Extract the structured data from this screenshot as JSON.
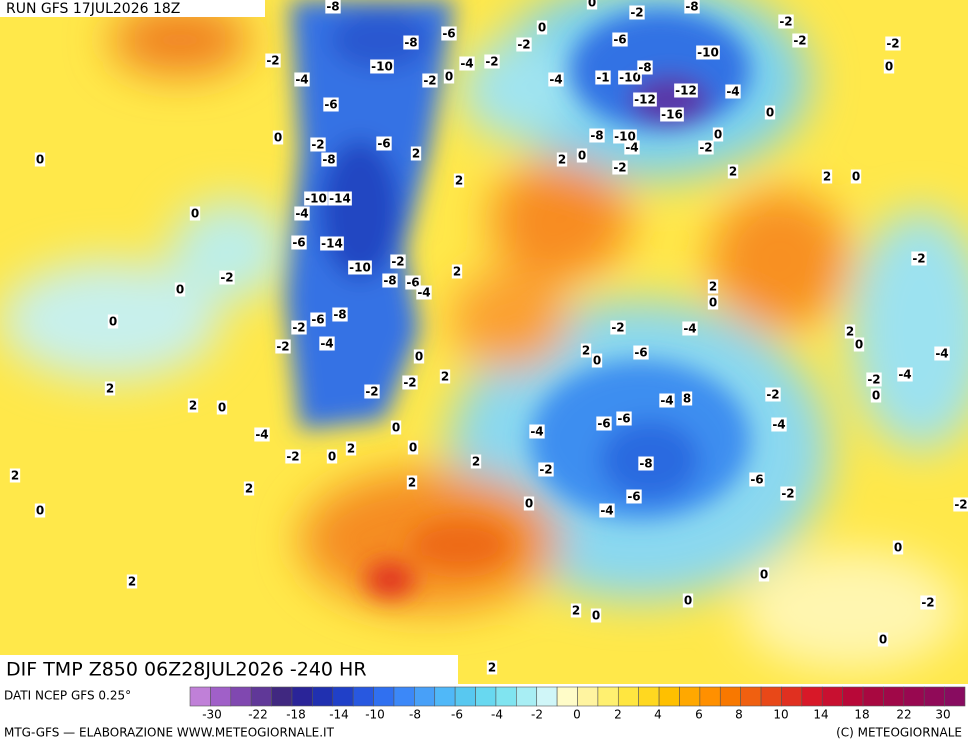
{
  "header": {
    "run": "RUN GFS 17JUL2026 18Z"
  },
  "map": {
    "title": "DIF TMP Z850 06Z28JUL2026 -240 HR",
    "contour_labels": [
      -8,
      0,
      -2,
      -8,
      -2,
      -2,
      -2,
      0,
      -6,
      -8,
      -10,
      -2,
      0,
      -6,
      -10,
      -2,
      -4,
      -2,
      0,
      -4,
      -2,
      -4,
      -1,
      -10,
      -8,
      -4,
      -12,
      -12,
      -16,
      0,
      -6,
      0,
      -2,
      -6,
      2,
      0,
      -8,
      -8,
      -10,
      -4,
      0,
      -2,
      2,
      0,
      -2,
      2,
      2,
      0,
      2,
      -10,
      -14,
      0,
      -4,
      -6,
      -14,
      -10,
      -2,
      -8,
      -6,
      -4,
      2,
      -2,
      0,
      -2,
      2,
      0,
      0,
      -2,
      -6,
      -8,
      -2,
      -4,
      -4,
      -2,
      2,
      0,
      -4,
      -6,
      2,
      0,
      0,
      -2,
      -4,
      -2,
      2,
      -2,
      2,
      2,
      0,
      -2,
      0,
      -4,
      8,
      -6,
      -6,
      -4,
      -4,
      -4,
      0,
      2,
      0,
      -2,
      0,
      2,
      -2,
      -8,
      2,
      -6,
      2,
      2,
      -2,
      -6,
      0,
      0,
      -4,
      -2,
      0,
      0,
      2,
      0,
      2,
      0,
      -2,
      0,
      2
    ]
  },
  "legend": {
    "source": "DATI NCEP GFS 0.25°",
    "colors": [
      "#c080d8",
      "#a060c8",
      "#8048b0",
      "#603898",
      "#402880",
      "#2a2498",
      "#2030b0",
      "#2040c8",
      "#2858e0",
      "#3070f0",
      "#3c88f8",
      "#48a0f8",
      "#50b8f8",
      "#58c8f0",
      "#68d8f0",
      "#80e4f0",
      "#a8eef4",
      "#d0f6f8",
      "#fffcc8",
      "#fff4a0",
      "#fff070",
      "#ffe640",
      "#ffd820",
      "#ffc000",
      "#ffa800",
      "#ff9000",
      "#f87800",
      "#f06010",
      "#e84818",
      "#e03020",
      "#d81828",
      "#c81030",
      "#b80838",
      "#a80840",
      "#a00848",
      "#980850",
      "#900a58",
      "#880c60"
    ],
    "labels": [
      -30,
      -22,
      -18,
      -14,
      -10,
      -8,
      -6,
      -4,
      -2,
      0,
      2,
      4,
      6,
      8,
      10,
      14,
      18,
      22,
      30
    ]
  },
  "footer": {
    "credit": "MTG-GFS — ELABORAZIONE WWW.METEOGIORNALE.IT",
    "copyright": "(C) METEOGIORNALE"
  }
}
